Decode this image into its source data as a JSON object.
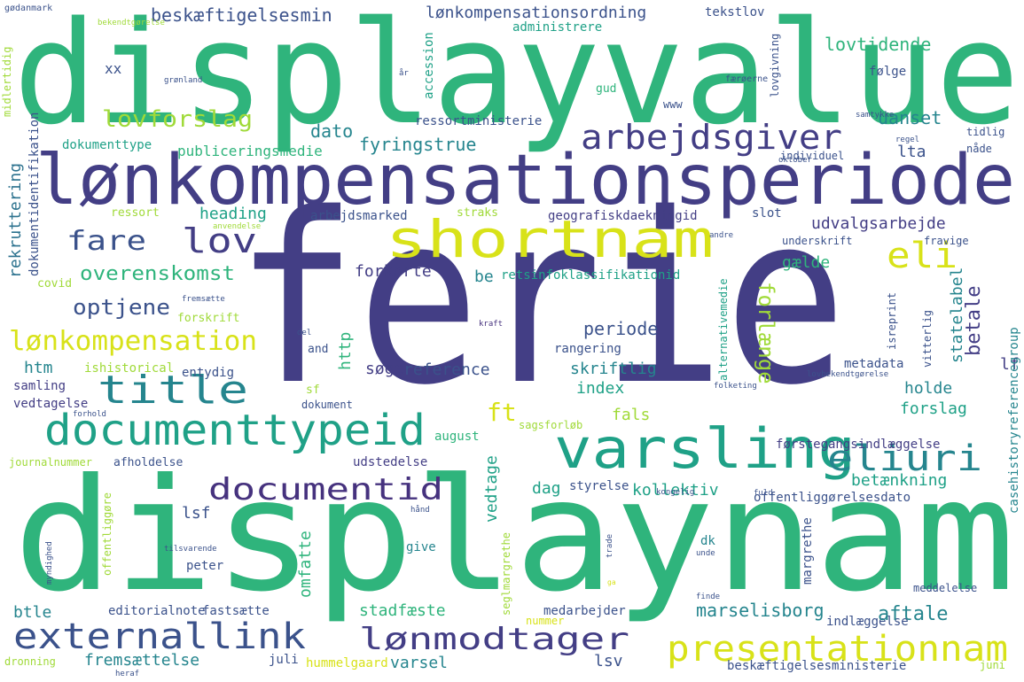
{
  "palette": {
    "background": "#ffffff",
    "yellow": "#d8e219",
    "lime": "#a0da39",
    "green": "#2fb47c",
    "teal": "#1fa187",
    "cyan": "#25858e",
    "blue": "#2c728e",
    "slate": "#3b528b",
    "indigo": "#433e85",
    "purple": "#46327e",
    "dark": "#440154"
  },
  "words": [
    {
      "text": "ferie",
      "color": "indigo"
    },
    {
      "text": "displayvalue",
      "color": "green"
    },
    {
      "text": "displaynam",
      "color": "green"
    },
    {
      "text": "lønkompensationsperiode",
      "color": "indigo"
    },
    {
      "text": "shortnam",
      "color": "yellow"
    },
    {
      "text": "varsling",
      "color": "teal"
    },
    {
      "text": "documenttypeid",
      "color": "teal"
    },
    {
      "text": "title",
      "color": "cyan"
    },
    {
      "text": "arbejdsgiver",
      "color": "indigo"
    },
    {
      "text": "externallink",
      "color": "slate"
    },
    {
      "text": "presentationnam",
      "color": "yellow"
    },
    {
      "text": "eliuri",
      "color": "cyan"
    },
    {
      "text": "documentid",
      "color": "purple"
    },
    {
      "text": "lønmodtager",
      "color": "indigo"
    },
    {
      "text": "lønkompensation",
      "color": "yellow"
    },
    {
      "text": "eli",
      "color": "yellow"
    },
    {
      "text": "lov",
      "color": "indigo"
    },
    {
      "text": "fare",
      "color": "slate"
    },
    {
      "text": "lovforslag",
      "color": "lime"
    },
    {
      "text": "optjene",
      "color": "slate"
    },
    {
      "text": "overenskomst",
      "color": "green"
    },
    {
      "text": "ft",
      "color": "yellow"
    },
    {
      "text": "forlænge",
      "color": "lime"
    },
    {
      "text": "beskæftigelsesmin",
      "color": "slate"
    },
    {
      "text": "lønkompensationsordning",
      "color": "slate"
    },
    {
      "text": "lovtidende",
      "color": "green"
    },
    {
      "text": "tekstlov",
      "color": "slate"
    },
    {
      "text": "følge",
      "color": "slate"
    },
    {
      "text": "accession",
      "color": "teal"
    },
    {
      "text": "administrere",
      "color": "teal"
    },
    {
      "text": "xx",
      "color": "slate"
    },
    {
      "text": "dato",
      "color": "cyan"
    },
    {
      "text": "fyringstrue",
      "color": "cyan"
    },
    {
      "text": "uanset",
      "color": "cyan"
    },
    {
      "text": "lta",
      "color": "slate"
    },
    {
      "text": "publiceringsmedie",
      "color": "green"
    },
    {
      "text": "dokumenttype",
      "color": "teal"
    },
    {
      "text": "ressortministerie",
      "color": "slate"
    },
    {
      "text": "heading",
      "color": "teal"
    },
    {
      "text": "udvalgsarbejde",
      "color": "indigo"
    },
    {
      "text": "geografiskdaekningid",
      "color": "indigo"
    },
    {
      "text": "arbejdsmarked",
      "color": "slate"
    },
    {
      "text": "straks",
      "color": "lime"
    },
    {
      "text": "ressort",
      "color": "lime"
    },
    {
      "text": "slot",
      "color": "slate"
    },
    {
      "text": "rekruttering",
      "color": "blue"
    },
    {
      "text": "dokumentidentifikation",
      "color": "slate"
    },
    {
      "text": "forkorte",
      "color": "indigo"
    },
    {
      "text": "retsinfoklassifikationid",
      "color": "teal"
    },
    {
      "text": "be",
      "color": "cyan"
    },
    {
      "text": "gælde",
      "color": "green"
    },
    {
      "text": "betale",
      "color": "indigo"
    },
    {
      "text": "statelabel",
      "color": "cyan"
    },
    {
      "text": "periode",
      "color": "slate"
    },
    {
      "text": "http",
      "color": "green"
    },
    {
      "text": "reference",
      "color": "slate"
    },
    {
      "text": "søge",
      "color": "indigo"
    },
    {
      "text": "skriftlig",
      "color": "cyan"
    },
    {
      "text": "index",
      "color": "teal"
    },
    {
      "text": "htm",
      "color": "cyan"
    },
    {
      "text": "ishistorical",
      "color": "lime"
    },
    {
      "text": "entydig",
      "color": "slate"
    },
    {
      "text": "metadata",
      "color": "slate"
    },
    {
      "text": "holde",
      "color": "cyan"
    },
    {
      "text": "forslag",
      "color": "teal"
    },
    {
      "text": "lf",
      "color": "indigo"
    },
    {
      "text": "samling",
      "color": "indigo"
    },
    {
      "text": "vedtagelse",
      "color": "indigo"
    },
    {
      "text": "dokument",
      "color": "slate"
    },
    {
      "text": "fals",
      "color": "lime"
    },
    {
      "text": "august",
      "color": "green"
    },
    {
      "text": "førstegangsindlæggelse",
      "color": "indigo"
    },
    {
      "text": "journalnummer",
      "color": "lime"
    },
    {
      "text": "afholdelse",
      "color": "slate"
    },
    {
      "text": "udstedelse",
      "color": "indigo"
    },
    {
      "text": "vedtage",
      "color": "teal"
    },
    {
      "text": "dag",
      "color": "teal"
    },
    {
      "text": "styrelse",
      "color": "slate"
    },
    {
      "text": "kollektiv",
      "color": "teal"
    },
    {
      "text": "betænkning",
      "color": "teal"
    },
    {
      "text": "offentliggørelsesdato",
      "color": "slate"
    },
    {
      "text": "casehistoryreferencegroup",
      "color": "cyan"
    },
    {
      "text": "lsf",
      "color": "slate"
    },
    {
      "text": "omfatte",
      "color": "green"
    },
    {
      "text": "give",
      "color": "cyan"
    },
    {
      "text": "peter",
      "color": "slate"
    },
    {
      "text": "dk",
      "color": "cyan"
    },
    {
      "text": "margrethe",
      "color": "slate"
    },
    {
      "text": "meddelelse",
      "color": "slate"
    },
    {
      "text": "indlæggelse",
      "color": "slate"
    },
    {
      "text": "stadfæste",
      "color": "green"
    },
    {
      "text": "marselisborg",
      "color": "cyan"
    },
    {
      "text": "aftale",
      "color": "cyan"
    },
    {
      "text": "btle",
      "color": "cyan"
    },
    {
      "text": "editorialnote",
      "color": "slate"
    },
    {
      "text": "fastsætte",
      "color": "slate"
    },
    {
      "text": "medarbejder",
      "color": "slate"
    },
    {
      "text": "nummer",
      "color": "yellow"
    },
    {
      "text": "fremsættelse",
      "color": "cyan"
    },
    {
      "text": "juli",
      "color": "slate"
    },
    {
      "text": "hummelgaard",
      "color": "yellow"
    },
    {
      "text": "varsel",
      "color": "cyan"
    },
    {
      "text": "lsv",
      "color": "slate"
    },
    {
      "text": "beskæftigelsesministerie",
      "color": "slate"
    },
    {
      "text": "juni",
      "color": "lime"
    },
    {
      "text": "dronning",
      "color": "lime"
    },
    {
      "text": "tidlig",
      "color": "slate"
    },
    {
      "text": "nåde",
      "color": "slate"
    },
    {
      "text": "individuel",
      "color": "slate"
    },
    {
      "text": "underskrift",
      "color": "slate"
    },
    {
      "text": "fravige",
      "color": "slate"
    },
    {
      "text": "isreprint",
      "color": "slate"
    },
    {
      "text": "alternativemedie",
      "color": "teal"
    },
    {
      "text": "vitterlig",
      "color": "slate"
    },
    {
      "text": "rangering",
      "color": "slate"
    },
    {
      "text": "sagsforløb",
      "color": "lime"
    },
    {
      "text": "seglmargrethe",
      "color": "lime"
    },
    {
      "text": "anvendelse",
      "color": "lime"
    },
    {
      "text": "gud",
      "color": "green"
    },
    {
      "text": "www",
      "color": "slate"
    },
    {
      "text": "lovgivning",
      "color": "slate"
    },
    {
      "text": "færøerne",
      "color": "slate"
    },
    {
      "text": "grønland",
      "color": "slate"
    },
    {
      "text": "midlertidig",
      "color": "lime"
    },
    {
      "text": "gødanmark",
      "color": "slate"
    },
    {
      "text": "bekendtgørelse",
      "color": "lime"
    },
    {
      "text": "år",
      "color": "slate"
    },
    {
      "text": "samtykke",
      "color": "slate"
    },
    {
      "text": "oktober",
      "color": "slate"
    },
    {
      "text": "regel",
      "color": "slate"
    },
    {
      "text": "andre",
      "color": "slate"
    },
    {
      "text": "covid",
      "color": "lime"
    },
    {
      "text": "fremsætte",
      "color": "slate"
    },
    {
      "text": "forskrift",
      "color": "lime"
    },
    {
      "text": "del",
      "color": "slate"
    },
    {
      "text": "and",
      "color": "slate"
    },
    {
      "text": "kraft",
      "color": "purple"
    },
    {
      "text": "sf",
      "color": "lime"
    },
    {
      "text": "folketing",
      "color": "slate"
    },
    {
      "text": "lovbekendtgørelse",
      "color": "slate"
    },
    {
      "text": "forhold",
      "color": "slate"
    },
    {
      "text": "fuld",
      "color": "slate"
    },
    {
      "text": "kongelig",
      "color": "slate"
    },
    {
      "text": "offentliggøre",
      "color": "lime"
    },
    {
      "text": "myndighed",
      "color": "slate"
    },
    {
      "text": "tilsvarende",
      "color": "slate"
    },
    {
      "text": "trade",
      "color": "slate"
    },
    {
      "text": "unde",
      "color": "slate"
    },
    {
      "text": "hånd",
      "color": "slate"
    },
    {
      "text": "finde",
      "color": "slate"
    },
    {
      "text": "ga",
      "color": "yellow"
    },
    {
      "text": "heraf",
      "color": "slate"
    }
  ]
}
